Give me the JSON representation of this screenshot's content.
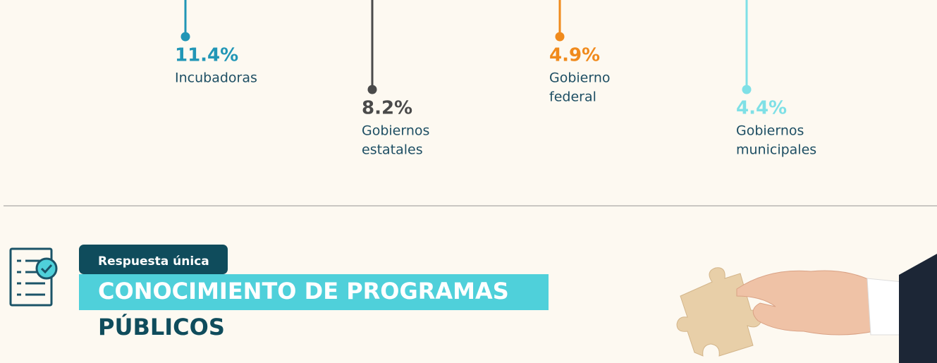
{
  "items": [
    {
      "value": "11.4%",
      "label_lines": [
        "Incubadoras"
      ]
    },
    {
      "value": "8.2%",
      "label_lines": [
        "Gobiernos",
        "estatales"
      ]
    },
    {
      "value": "4.9%",
      "label_lines": [
        "Gobierno",
        "federal"
      ]
    },
    {
      "value": "4.4%",
      "label_lines": [
        "Gobiernos",
        "municipales"
      ]
    }
  ],
  "section": {
    "tag": "Respuesta única",
    "title_lines": [
      "CONOCIMIENTO DE PROGRAMAS",
      "PÚBLICOS"
    ]
  }
}
